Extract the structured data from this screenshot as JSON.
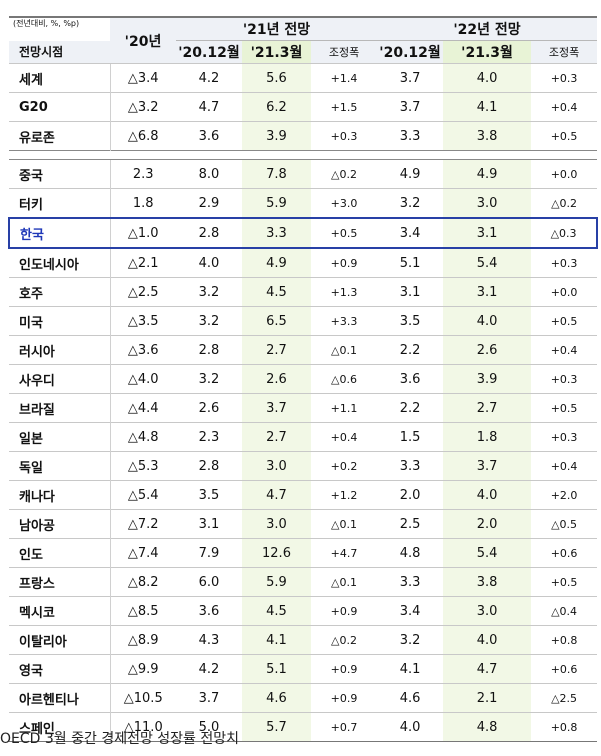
{
  "table": {
    "units": "(전년대비, %, %p)",
    "col_outlook_time": "전망시점",
    "col_2020": "'20년",
    "group_2021": "'21년 전망",
    "group_2022": "'22년 전망",
    "sub_prev": "'20.12월",
    "sub_curr": "'21.3월",
    "sub_adj": "조정폭",
    "rows": [
      {
        "name": "세계",
        "y2020": "△3.4",
        "a_prev": "4.2",
        "a_curr": "5.6",
        "a_adj": "+1.4",
        "b_prev": "3.7",
        "b_curr": "4.0",
        "b_adj": "+0.3"
      },
      {
        "name": "G20",
        "y2020": "△3.2",
        "a_prev": "4.7",
        "a_curr": "6.2",
        "a_adj": "+1.5",
        "b_prev": "3.7",
        "b_curr": "4.1",
        "b_adj": "+0.4"
      },
      {
        "name": "유로존",
        "y2020": "△6.8",
        "a_prev": "3.6",
        "a_curr": "3.9",
        "a_adj": "+0.3",
        "b_prev": "3.3",
        "b_curr": "3.8",
        "b_adj": "+0.5"
      },
      {
        "name": "중국",
        "y2020": "2.3",
        "a_prev": "8.0",
        "a_curr": "7.8",
        "a_adj": "△0.2",
        "b_prev": "4.9",
        "b_curr": "4.9",
        "b_adj": "+0.0"
      },
      {
        "name": "터키",
        "y2020": "1.8",
        "a_prev": "2.9",
        "a_curr": "5.9",
        "a_adj": "+3.0",
        "b_prev": "3.2",
        "b_curr": "3.0",
        "b_adj": "△0.2"
      },
      {
        "name": "한국",
        "y2020": "△1.0",
        "a_prev": "2.8",
        "a_curr": "3.3",
        "a_adj": "+0.5",
        "b_prev": "3.4",
        "b_curr": "3.1",
        "b_adj": "△0.3"
      },
      {
        "name": "인도네시아",
        "y2020": "△2.1",
        "a_prev": "4.0",
        "a_curr": "4.9",
        "a_adj": "+0.9",
        "b_prev": "5.1",
        "b_curr": "5.4",
        "b_adj": "+0.3"
      },
      {
        "name": "호주",
        "y2020": "△2.5",
        "a_prev": "3.2",
        "a_curr": "4.5",
        "a_adj": "+1.3",
        "b_prev": "3.1",
        "b_curr": "3.1",
        "b_adj": "+0.0"
      },
      {
        "name": "미국",
        "y2020": "△3.5",
        "a_prev": "3.2",
        "a_curr": "6.5",
        "a_adj": "+3.3",
        "b_prev": "3.5",
        "b_curr": "4.0",
        "b_adj": "+0.5"
      },
      {
        "name": "러시아",
        "y2020": "△3.6",
        "a_prev": "2.8",
        "a_curr": "2.7",
        "a_adj": "△0.1",
        "b_prev": "2.2",
        "b_curr": "2.6",
        "b_adj": "+0.4"
      },
      {
        "name": "사우디",
        "y2020": "△4.0",
        "a_prev": "3.2",
        "a_curr": "2.6",
        "a_adj": "△0.6",
        "b_prev": "3.6",
        "b_curr": "3.9",
        "b_adj": "+0.3"
      },
      {
        "name": "브라질",
        "y2020": "△4.4",
        "a_prev": "2.6",
        "a_curr": "3.7",
        "a_adj": "+1.1",
        "b_prev": "2.2",
        "b_curr": "2.7",
        "b_adj": "+0.5"
      },
      {
        "name": "일본",
        "y2020": "△4.8",
        "a_prev": "2.3",
        "a_curr": "2.7",
        "a_adj": "+0.4",
        "b_prev": "1.5",
        "b_curr": "1.8",
        "b_adj": "+0.3"
      },
      {
        "name": "독일",
        "y2020": "△5.3",
        "a_prev": "2.8",
        "a_curr": "3.0",
        "a_adj": "+0.2",
        "b_prev": "3.3",
        "b_curr": "3.7",
        "b_adj": "+0.4"
      },
      {
        "name": "캐나다",
        "y2020": "△5.4",
        "a_prev": "3.5",
        "a_curr": "4.7",
        "a_adj": "+1.2",
        "b_prev": "2.0",
        "b_curr": "4.0",
        "b_adj": "+2.0"
      },
      {
        "name": "남아공",
        "y2020": "△7.2",
        "a_prev": "3.1",
        "a_curr": "3.0",
        "a_adj": "△0.1",
        "b_prev": "2.5",
        "b_curr": "2.0",
        "b_adj": "△0.5"
      },
      {
        "name": "인도",
        "y2020": "△7.4",
        "a_prev": "7.9",
        "a_curr": "12.6",
        "a_adj": "+4.7",
        "b_prev": "4.8",
        "b_curr": "5.4",
        "b_adj": "+0.6"
      },
      {
        "name": "프랑스",
        "y2020": "△8.2",
        "a_prev": "6.0",
        "a_curr": "5.9",
        "a_adj": "△0.1",
        "b_prev": "3.3",
        "b_curr": "3.8",
        "b_adj": "+0.5"
      },
      {
        "name": "멕시코",
        "y2020": "△8.5",
        "a_prev": "3.6",
        "a_curr": "4.5",
        "a_adj": "+0.9",
        "b_prev": "3.4",
        "b_curr": "3.0",
        "b_adj": "△0.4"
      },
      {
        "name": "이탈리아",
        "y2020": "△8.9",
        "a_prev": "4.3",
        "a_curr": "4.1",
        "a_adj": "△0.2",
        "b_prev": "3.2",
        "b_curr": "4.0",
        "b_adj": "+0.8"
      },
      {
        "name": "영국",
        "y2020": "△9.9",
        "a_prev": "4.2",
        "a_curr": "5.1",
        "a_adj": "+0.9",
        "b_prev": "4.1",
        "b_curr": "4.7",
        "b_adj": "+0.6"
      },
      {
        "name": "아르헨티나",
        "y2020": "△10.5",
        "a_prev": "3.7",
        "a_curr": "4.6",
        "a_adj": "+0.9",
        "b_prev": "4.6",
        "b_curr": "2.1",
        "b_adj": "△2.5"
      },
      {
        "name": "스페인",
        "y2020": "△11.0",
        "a_prev": "5.0",
        "a_curr": "5.7",
        "a_adj": "+0.7",
        "b_prev": "4.0",
        "b_curr": "4.8",
        "b_adj": "+0.8"
      }
    ]
  },
  "caption": "OECD 3월 중간 경제전망 성장률 전망치"
}
